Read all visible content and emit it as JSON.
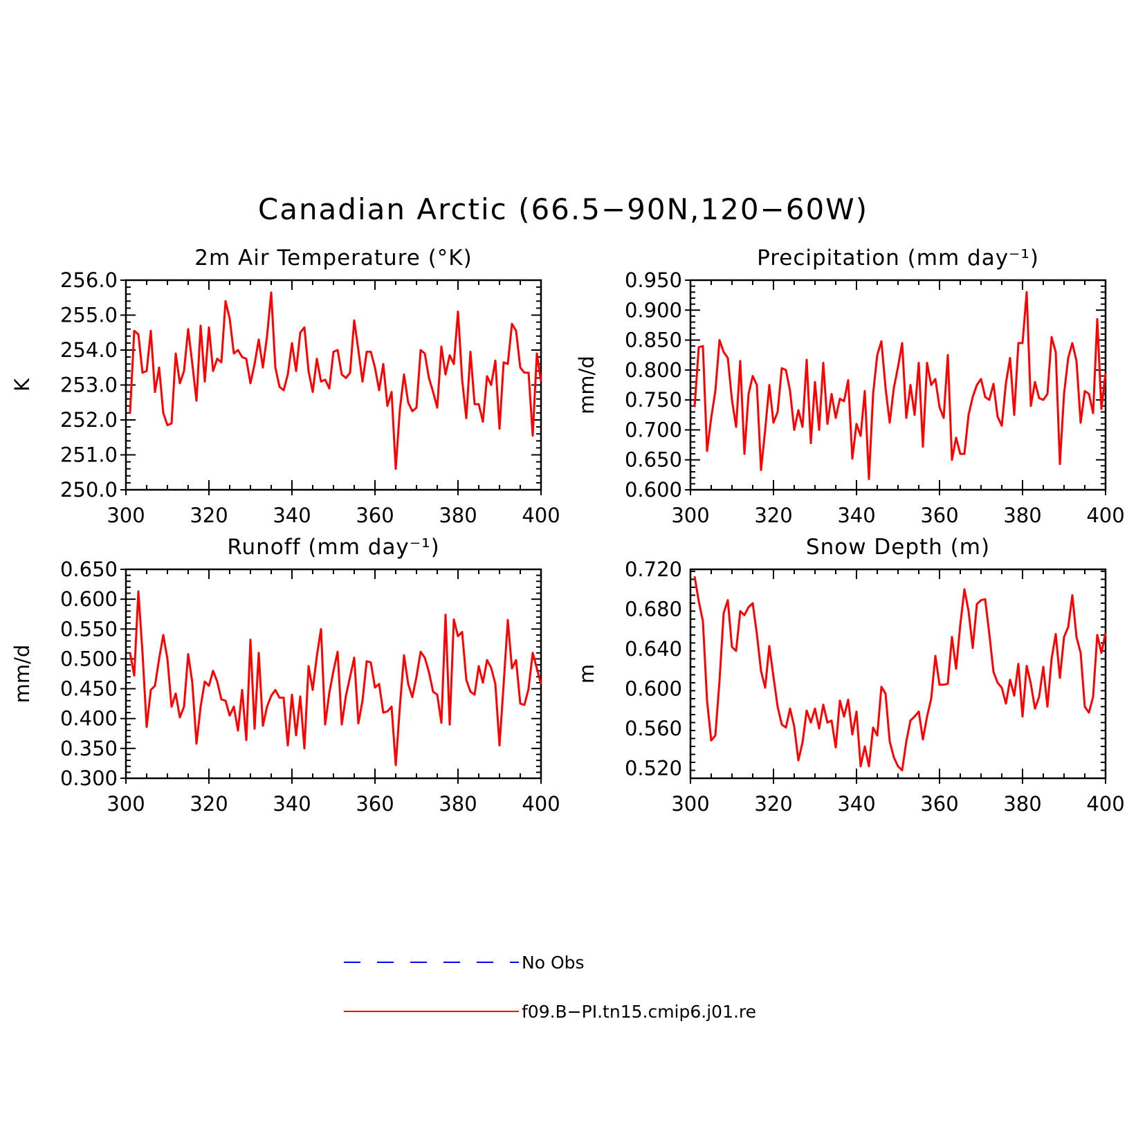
{
  "title": "Canadian Arctic (66.5−90N,120−60W)",
  "colors": {
    "model": "#ff0000",
    "obs": "#0000ff",
    "axis": "#000000"
  },
  "legend": {
    "entries": [
      {
        "label": "No Obs",
        "color": "#0000ff",
        "style": "dashed"
      },
      {
        "label": "f09.B−PI.tn15.cmip6.j01.re",
        "color": "#ff0000",
        "style": "solid"
      }
    ]
  },
  "chart_data": [
    {
      "type": "line",
      "title": "2m Air Temperature (°K)",
      "xlabel": "",
      "ylabel": "K",
      "xlim": [
        300,
        400
      ],
      "ylim": [
        250.0,
        256.0
      ],
      "x_ticks": [
        "300",
        "320",
        "340",
        "360",
        "380",
        "400"
      ],
      "y_ticks": [
        "250.0",
        "251.0",
        "252.0",
        "253.0",
        "254.0",
        "255.0",
        "256.0"
      ],
      "x_start": 301,
      "series": [
        {
          "name": "f09.B−PI.tn15.cmip6.j01.re",
          "color": "#ff0000",
          "values": [
            252.2,
            254.55,
            254.45,
            253.35,
            253.4,
            254.55,
            252.8,
            253.5,
            252.2,
            251.85,
            251.9,
            253.9,
            253.05,
            253.4,
            254.6,
            253.6,
            252.55,
            254.7,
            253.1,
            254.65,
            253.4,
            253.75,
            253.65,
            255.4,
            254.9,
            253.9,
            254.0,
            253.8,
            253.75,
            253.05,
            253.6,
            254.3,
            253.5,
            254.4,
            255.65,
            253.5,
            252.95,
            252.85,
            253.3,
            254.2,
            253.4,
            254.5,
            254.65,
            253.4,
            252.8,
            253.75,
            253.1,
            253.15,
            252.9,
            253.95,
            254.0,
            253.3,
            253.2,
            253.35,
            254.85,
            254.0,
            253.1,
            253.95,
            253.95,
            253.5,
            252.85,
            253.6,
            252.4,
            252.8,
            250.6,
            252.3,
            253.3,
            252.5,
            252.25,
            252.35,
            254.0,
            253.9,
            253.2,
            252.8,
            252.35,
            254.1,
            253.3,
            253.85,
            253.6,
            255.1,
            253.15,
            252.05,
            253.95,
            252.45,
            252.45,
            251.95,
            253.25,
            253.0,
            253.7,
            251.75,
            253.65,
            253.6,
            254.75,
            254.55,
            253.5,
            253.35,
            253.35,
            251.55,
            253.9,
            253.1
          ]
        }
      ]
    },
    {
      "type": "line",
      "title": "Precipitation (mm day⁻¹)",
      "xlabel": "",
      "ylabel": "mm/d",
      "xlim": [
        300,
        400
      ],
      "ylim": [
        0.6,
        0.95
      ],
      "x_ticks": [
        "300",
        "320",
        "340",
        "360",
        "380",
        "400"
      ],
      "y_ticks": [
        "0.600",
        "0.650",
        "0.700",
        "0.750",
        "0.800",
        "0.850",
        "0.900",
        "0.950"
      ],
      "x_start": 301,
      "series": [
        {
          "name": "f09.B−PI.tn15.cmip6.j01.re",
          "color": "#ff0000",
          "values": [
            0.738,
            0.838,
            0.84,
            0.665,
            0.72,
            0.765,
            0.85,
            0.83,
            0.82,
            0.75,
            0.705,
            0.815,
            0.66,
            0.76,
            0.79,
            0.775,
            0.633,
            0.7,
            0.775,
            0.712,
            0.73,
            0.803,
            0.8,
            0.765,
            0.7,
            0.733,
            0.705,
            0.817,
            0.678,
            0.78,
            0.7,
            0.812,
            0.71,
            0.76,
            0.72,
            0.752,
            0.748,
            0.783,
            0.652,
            0.71,
            0.69,
            0.765,
            0.618,
            0.76,
            0.825,
            0.848,
            0.77,
            0.712,
            0.77,
            0.805,
            0.845,
            0.72,
            0.775,
            0.725,
            0.812,
            0.672,
            0.812,
            0.775,
            0.785,
            0.738,
            0.72,
            0.825,
            0.65,
            0.687,
            0.66,
            0.66,
            0.725,
            0.755,
            0.775,
            0.785,
            0.755,
            0.75,
            0.777,
            0.722,
            0.707,
            0.778,
            0.82,
            0.725,
            0.845,
            0.845,
            0.93,
            0.74,
            0.78,
            0.753,
            0.75,
            0.76,
            0.855,
            0.83,
            0.643,
            0.76,
            0.82,
            0.845,
            0.815,
            0.712,
            0.765,
            0.76,
            0.728,
            0.885,
            0.735,
            0.795
          ]
        }
      ]
    },
    {
      "type": "line",
      "title": "Runoff (mm day⁻¹)",
      "xlabel": "",
      "ylabel": "mm/d",
      "xlim": [
        300,
        400
      ],
      "ylim": [
        0.3,
        0.65
      ],
      "x_ticks": [
        "300",
        "320",
        "340",
        "360",
        "380",
        "400"
      ],
      "y_ticks": [
        "0.300",
        "0.350",
        "0.400",
        "0.450",
        "0.500",
        "0.550",
        "0.600",
        "0.650"
      ],
      "x_start": 301,
      "series": [
        {
          "name": "f09.B−PI.tn15.cmip6.j01.re",
          "color": "#ff0000",
          "values": [
            0.51,
            0.472,
            0.613,
            0.51,
            0.386,
            0.448,
            0.455,
            0.5,
            0.54,
            0.5,
            0.42,
            0.442,
            0.402,
            0.42,
            0.508,
            0.46,
            0.358,
            0.42,
            0.462,
            0.455,
            0.48,
            0.462,
            0.432,
            0.43,
            0.405,
            0.42,
            0.38,
            0.448,
            0.364,
            0.532,
            0.383,
            0.51,
            0.388,
            0.42,
            0.438,
            0.448,
            0.435,
            0.435,
            0.355,
            0.44,
            0.372,
            0.437,
            0.35,
            0.488,
            0.448,
            0.505,
            0.55,
            0.39,
            0.443,
            0.48,
            0.512,
            0.39,
            0.438,
            0.47,
            0.502,
            0.392,
            0.43,
            0.496,
            0.494,
            0.452,
            0.458,
            0.41,
            0.412,
            0.42,
            0.322,
            0.42,
            0.506,
            0.458,
            0.436,
            0.47,
            0.512,
            0.502,
            0.478,
            0.445,
            0.44,
            0.393,
            0.574,
            0.39,
            0.566,
            0.538,
            0.545,
            0.465,
            0.445,
            0.44,
            0.488,
            0.46,
            0.498,
            0.485,
            0.458,
            0.355,
            0.458,
            0.565,
            0.484,
            0.498,
            0.425,
            0.423,
            0.45,
            0.51,
            0.484,
            0.458
          ]
        }
      ]
    },
    {
      "type": "line",
      "title": "Snow Depth (m)",
      "xlabel": "",
      "ylabel": "m",
      "xlim": [
        300,
        400
      ],
      "ylim": [
        0.51,
        0.72
      ],
      "x_ticks": [
        "300",
        "320",
        "340",
        "360",
        "380",
        "400"
      ],
      "y_ticks": [
        "0.520",
        "0.560",
        "0.600",
        "0.640",
        "0.680",
        "0.720"
      ],
      "y_tick_values": [
        0.52,
        0.56,
        0.6,
        0.64,
        0.68,
        0.72
      ],
      "x_start": 301,
      "series": [
        {
          "name": "f09.B−PI.tn15.cmip6.j01.re",
          "color": "#ff0000",
          "values": [
            0.713,
            0.688,
            0.668,
            0.588,
            0.548,
            0.553,
            0.608,
            0.676,
            0.689,
            0.642,
            0.638,
            0.678,
            0.674,
            0.682,
            0.686,
            0.655,
            0.618,
            0.601,
            0.643,
            0.612,
            0.582,
            0.564,
            0.561,
            0.58,
            0.562,
            0.528,
            0.546,
            0.578,
            0.566,
            0.58,
            0.56,
            0.584,
            0.566,
            0.568,
            0.541,
            0.588,
            0.572,
            0.589,
            0.554,
            0.577,
            0.522,
            0.542,
            0.522,
            0.561,
            0.553,
            0.602,
            0.595,
            0.547,
            0.531,
            0.522,
            0.518,
            0.547,
            0.568,
            0.572,
            0.577,
            0.549,
            0.572,
            0.59,
            0.633,
            0.604,
            0.604,
            0.605,
            0.652,
            0.62,
            0.664,
            0.7,
            0.678,
            0.641,
            0.685,
            0.689,
            0.69,
            0.655,
            0.617,
            0.606,
            0.601,
            0.585,
            0.609,
            0.593,
            0.625,
            0.572,
            0.623,
            0.605,
            0.58,
            0.592,
            0.622,
            0.582,
            0.63,
            0.655,
            0.611,
            0.652,
            0.662,
            0.694,
            0.652,
            0.636,
            0.582,
            0.576,
            0.592,
            0.654,
            0.636,
            0.656
          ]
        }
      ]
    }
  ]
}
